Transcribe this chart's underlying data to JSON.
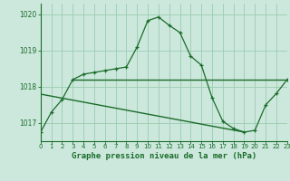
{
  "title": "Graphe pression niveau de la mer (hPa)",
  "xlabel_ticks": [
    0,
    1,
    2,
    3,
    4,
    5,
    6,
    7,
    8,
    9,
    10,
    11,
    12,
    13,
    14,
    15,
    16,
    17,
    18,
    19,
    20,
    21,
    22,
    23
  ],
  "ylim": [
    1016.5,
    1020.3
  ],
  "yticks": [
    1017,
    1018,
    1019,
    1020
  ],
  "background_color": "#cce8dc",
  "grid_color": "#99ccb0",
  "line_color": "#1a6b2a",
  "line1_x": [
    0,
    1,
    2,
    3,
    4,
    5,
    6,
    7,
    8,
    9,
    10,
    11,
    12,
    13,
    14,
    15,
    16,
    17,
    18,
    19,
    20,
    21,
    22,
    23
  ],
  "line1_y": [
    1016.75,
    1017.3,
    1017.65,
    1018.2,
    1018.35,
    1018.4,
    1018.45,
    1018.5,
    1018.55,
    1019.1,
    1019.83,
    1019.93,
    1019.7,
    1019.5,
    1018.85,
    1018.6,
    1017.7,
    1017.05,
    1016.85,
    1016.75,
    1016.8,
    1017.5,
    1017.82,
    1018.2
  ],
  "line2_x": [
    3,
    23
  ],
  "line2_y": [
    1018.2,
    1018.2
  ],
  "line3_x": [
    0,
    19
  ],
  "line3_y": [
    1017.8,
    1016.75
  ],
  "figsize": [
    3.2,
    2.0
  ],
  "dpi": 100
}
